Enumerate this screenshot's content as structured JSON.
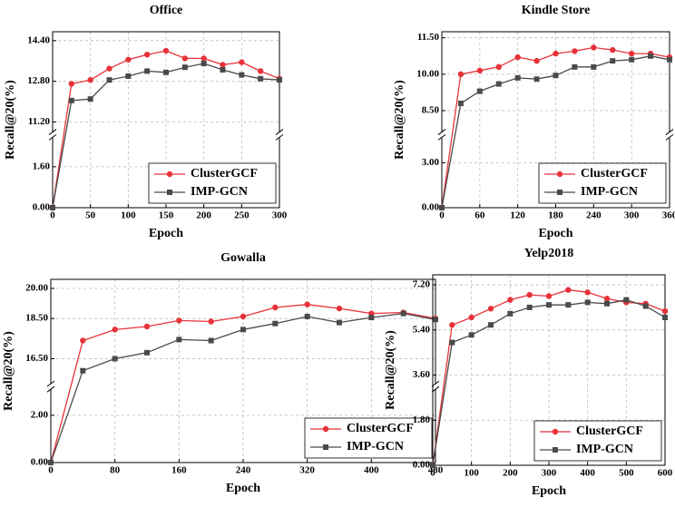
{
  "chart_data": [
    {
      "type": "line",
      "title": "Office",
      "xlabel": "Epoch",
      "ylabel": "Recall@20(%)",
      "x": [
        0,
        25,
        50,
        75,
        100,
        125,
        150,
        175,
        200,
        225,
        250,
        275,
        300
      ],
      "series": [
        {
          "name": "ClusterGCF",
          "color": "#e8323a",
          "marker": "circle",
          "values": [
            0,
            12.7,
            12.85,
            13.3,
            13.65,
            13.85,
            14.0,
            13.7,
            13.7,
            13.45,
            13.55,
            13.2,
            12.9
          ]
        },
        {
          "name": "IMP-GCN",
          "color": "#4a4a4a",
          "marker": "square",
          "values": [
            0,
            12.04,
            12.1,
            12.85,
            13.0,
            13.2,
            13.15,
            13.35,
            13.5,
            13.25,
            13.05,
            12.9,
            12.85
          ]
        }
      ],
      "xlim": [
        0,
        300
      ],
      "xticks": [
        0,
        50,
        100,
        150,
        200,
        250,
        300
      ],
      "ylim": [
        0,
        14.75
      ],
      "ybreak": [
        2.75,
        10.8
      ],
      "yticks": [
        {
          "value": 0,
          "label": "0.00"
        },
        {
          "value": 1.6,
          "label": "1.60"
        },
        {
          "value": 11.2,
          "label": "11.20"
        },
        {
          "value": 12.8,
          "label": "12.80"
        },
        {
          "value": 14.4,
          "label": "14.40"
        }
      ],
      "grid": true,
      "legend": "lower right"
    },
    {
      "type": "line",
      "title": "Kindle Store",
      "xlabel": "Epoch",
      "ylabel": "Recall@20(%)",
      "x": [
        0,
        30,
        60,
        90,
        120,
        150,
        180,
        210,
        240,
        270,
        300,
        330,
        360
      ],
      "series": [
        {
          "name": "ClusterGCF",
          "color": "#e8323a",
          "marker": "circle",
          "values": [
            0,
            10.0,
            10.15,
            10.3,
            10.7,
            10.55,
            10.85,
            10.95,
            11.1,
            11.0,
            10.85,
            10.85,
            10.7
          ]
        },
        {
          "name": "IMP-GCN",
          "color": "#4a4a4a",
          "marker": "square",
          "values": [
            0,
            8.8,
            9.3,
            9.6,
            9.85,
            9.8,
            9.95,
            10.3,
            10.3,
            10.55,
            10.6,
            10.75,
            10.6
          ]
        }
      ],
      "xlim": [
        0,
        360
      ],
      "xticks": [
        0,
        60,
        120,
        180,
        240,
        300,
        360
      ],
      "ylim": [
        0,
        11.75
      ],
      "ybreak": [
        4.7,
        7.62
      ],
      "yticks": [
        {
          "value": 0,
          "label": "0.00"
        },
        {
          "value": 3,
          "label": "3.00"
        },
        {
          "value": 8.5,
          "label": "8.50"
        },
        {
          "value": 10,
          "label": "10.00"
        },
        {
          "value": 11.5,
          "label": "11.50"
        }
      ],
      "grid": true,
      "legend": "lower right"
    },
    {
      "type": "line",
      "title": "Gowalla",
      "xlabel": "Epoch",
      "ylabel": "Recall@20(%)",
      "x": [
        0,
        40,
        80,
        120,
        160,
        200,
        240,
        280,
        320,
        360,
        400,
        440,
        480
      ],
      "series": [
        {
          "name": "ClusterGCF",
          "color": "#e8323a",
          "marker": "circle",
          "values": [
            0,
            17.4,
            17.95,
            18.1,
            18.4,
            18.35,
            18.6,
            19.05,
            19.2,
            19.0,
            18.75,
            18.8,
            18.5
          ]
        },
        {
          "name": "IMP-GCN",
          "color": "#4a4a4a",
          "marker": "square",
          "values": [
            0,
            15.9,
            16.5,
            16.8,
            17.45,
            17.4,
            17.95,
            18.25,
            18.6,
            18.3,
            18.55,
            18.75,
            18.45
          ]
        }
      ],
      "xlim": [
        0,
        480
      ],
      "xticks": [
        0,
        80,
        160,
        240,
        320,
        400,
        480
      ],
      "ylim": [
        0,
        20.45
      ],
      "ybreak": [
        3.1,
        15.25
      ],
      "yticks": [
        {
          "value": 0,
          "label": "0.00"
        },
        {
          "value": 2,
          "label": "2.00"
        },
        {
          "value": 16.5,
          "label": "16.50"
        },
        {
          "value": 18.5,
          "label": "18.50"
        },
        {
          "value": 20,
          "label": "20.00"
        }
      ],
      "grid": true,
      "legend": "lower right"
    },
    {
      "type": "line",
      "title": "Yelp2018",
      "xlabel": "Epoch",
      "ylabel": "Recall@20(%)",
      "x": [
        0,
        50,
        100,
        150,
        200,
        250,
        300,
        350,
        400,
        450,
        500,
        550,
        600
      ],
      "series": [
        {
          "name": "ClusterGCF",
          "color": "#e8323a",
          "marker": "circle",
          "values": [
            0,
            5.6,
            5.9,
            6.25,
            6.6,
            6.8,
            6.75,
            7.0,
            6.9,
            6.65,
            6.5,
            6.45,
            6.15
          ]
        },
        {
          "name": "IMP-GCN",
          "color": "#4a4a4a",
          "marker": "square",
          "values": [
            0,
            4.9,
            5.2,
            5.6,
            6.05,
            6.3,
            6.4,
            6.4,
            6.5,
            6.45,
            6.6,
            6.35,
            5.9
          ]
        }
      ],
      "xlim": [
        0,
        600
      ],
      "xticks": [
        0,
        100,
        200,
        300,
        400,
        500,
        600
      ],
      "ylim": [
        0,
        7.6
      ],
      "yticks": [
        {
          "value": 0,
          "label": "0.00"
        },
        {
          "value": 1.8,
          "label": "1.80"
        },
        {
          "value": 3.6,
          "label": "3.60"
        },
        {
          "value": 5.4,
          "label": "5.40"
        },
        {
          "value": 7.2,
          "label": "7.20"
        }
      ],
      "grid": true,
      "legend": "lower right"
    }
  ]
}
